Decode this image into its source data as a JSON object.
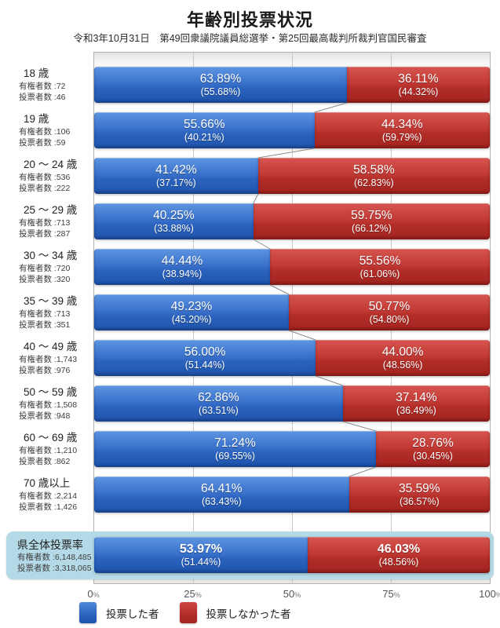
{
  "title": "年齢別投票状況",
  "subtitle": "令和3年10月31日　第49回衆議院議員総選挙・第25回最高裁判所裁判官国民審査",
  "labels": {
    "eligible_prefix": "有権者数 :",
    "voters_prefix": "投票者数 :"
  },
  "colors": {
    "voted": "#2b62bd",
    "not_voted": "#b22d28",
    "total_highlight": "#b5dae7",
    "gridline": "#c9c9c9"
  },
  "chart_data": {
    "type": "bar",
    "orientation": "horizontal",
    "stacked": true,
    "title": "年齢別投票状況",
    "subtitle": "令和3年10月31日　第49回衆議院議員総選挙・第25回最高裁判所裁判官国民審査",
    "xlim": [
      0,
      100
    ],
    "x_ticks": [
      "0%",
      "25%",
      "50%",
      "75%",
      "100%"
    ],
    "grid": true,
    "legend_position": "bottom",
    "legend": [
      {
        "key": "voted",
        "label": "投票した者",
        "color": "#2b62bd"
      },
      {
        "key": "not_voted",
        "label": "投票しなかった者",
        "color": "#b22d28"
      }
    ],
    "rows": [
      {
        "age": "18 歳",
        "eligible": "72",
        "voters": "46",
        "voted": 63.89,
        "voted_label": "63.89%",
        "voted_sub": "(55.68%)",
        "not_voted": 36.11,
        "not_voted_label": "36.11%",
        "not_voted_sub": "(44.32%)"
      },
      {
        "age": "19 歳",
        "eligible": "106",
        "voters": "59",
        "voted": 55.66,
        "voted_label": "55.66%",
        "voted_sub": "(40.21%)",
        "not_voted": 44.34,
        "not_voted_label": "44.34%",
        "not_voted_sub": "(59.79%)"
      },
      {
        "age": "20 ～ 24 歳",
        "eligible": "536",
        "voters": "222",
        "voted": 41.42,
        "voted_label": "41.42%",
        "voted_sub": "(37.17%)",
        "not_voted": 58.58,
        "not_voted_label": "58.58%",
        "not_voted_sub": "(62.83%)"
      },
      {
        "age": "25 ～ 29 歳",
        "eligible": "713",
        "voters": "287",
        "voted": 40.25,
        "voted_label": "40.25%",
        "voted_sub": "(33.88%)",
        "not_voted": 59.75,
        "not_voted_label": "59.75%",
        "not_voted_sub": "(66.12%)"
      },
      {
        "age": "30 ～ 34 歳",
        "eligible": "720",
        "voters": "320",
        "voted": 44.44,
        "voted_label": "44.44%",
        "voted_sub": "(38.94%)",
        "not_voted": 55.56,
        "not_voted_label": "55.56%",
        "not_voted_sub": "(61.06%)"
      },
      {
        "age": "35 ～ 39 歳",
        "eligible": "713",
        "voters": "351",
        "voted": 49.23,
        "voted_label": "49.23%",
        "voted_sub": "(45.20%)",
        "not_voted": 50.77,
        "not_voted_label": "50.77%",
        "not_voted_sub": "(54.80%)"
      },
      {
        "age": "40 ～ 49 歳",
        "eligible": "1,743",
        "voters": "976",
        "voted": 56.0,
        "voted_label": "56.00%",
        "voted_sub": "(51.44%)",
        "not_voted": 44.0,
        "not_voted_label": "44.00%",
        "not_voted_sub": "(48.56%)"
      },
      {
        "age": "50 ～ 59 歳",
        "eligible": "1,508",
        "voters": "948",
        "voted": 62.86,
        "voted_label": "62.86%",
        "voted_sub": "(63.51%)",
        "not_voted": 37.14,
        "not_voted_label": "37.14%",
        "not_voted_sub": "(36.49%)"
      },
      {
        "age": "60 ～ 69 歳",
        "eligible": "1,210",
        "voters": "862",
        "voted": 71.24,
        "voted_label": "71.24%",
        "voted_sub": "(69.55%)",
        "not_voted": 28.76,
        "not_voted_label": "28.76%",
        "not_voted_sub": "(30.45%)"
      },
      {
        "age": "70 歳以上",
        "eligible": "2,214",
        "voters": "1,426",
        "voted": 64.41,
        "voted_label": "64.41%",
        "voted_sub": "(63.43%)",
        "not_voted": 35.59,
        "not_voted_label": "35.59%",
        "not_voted_sub": "(36.57%)"
      }
    ],
    "total": {
      "age_label": "県全体投票率",
      "eligible": "6,148,485",
      "voters": "3,318,065",
      "voted": 53.97,
      "voted_label": "53.97%",
      "voted_sub": "(51.44%)",
      "not_voted": 46.03,
      "not_voted_label": "46.03%",
      "not_voted_sub": "(48.56%)"
    }
  }
}
